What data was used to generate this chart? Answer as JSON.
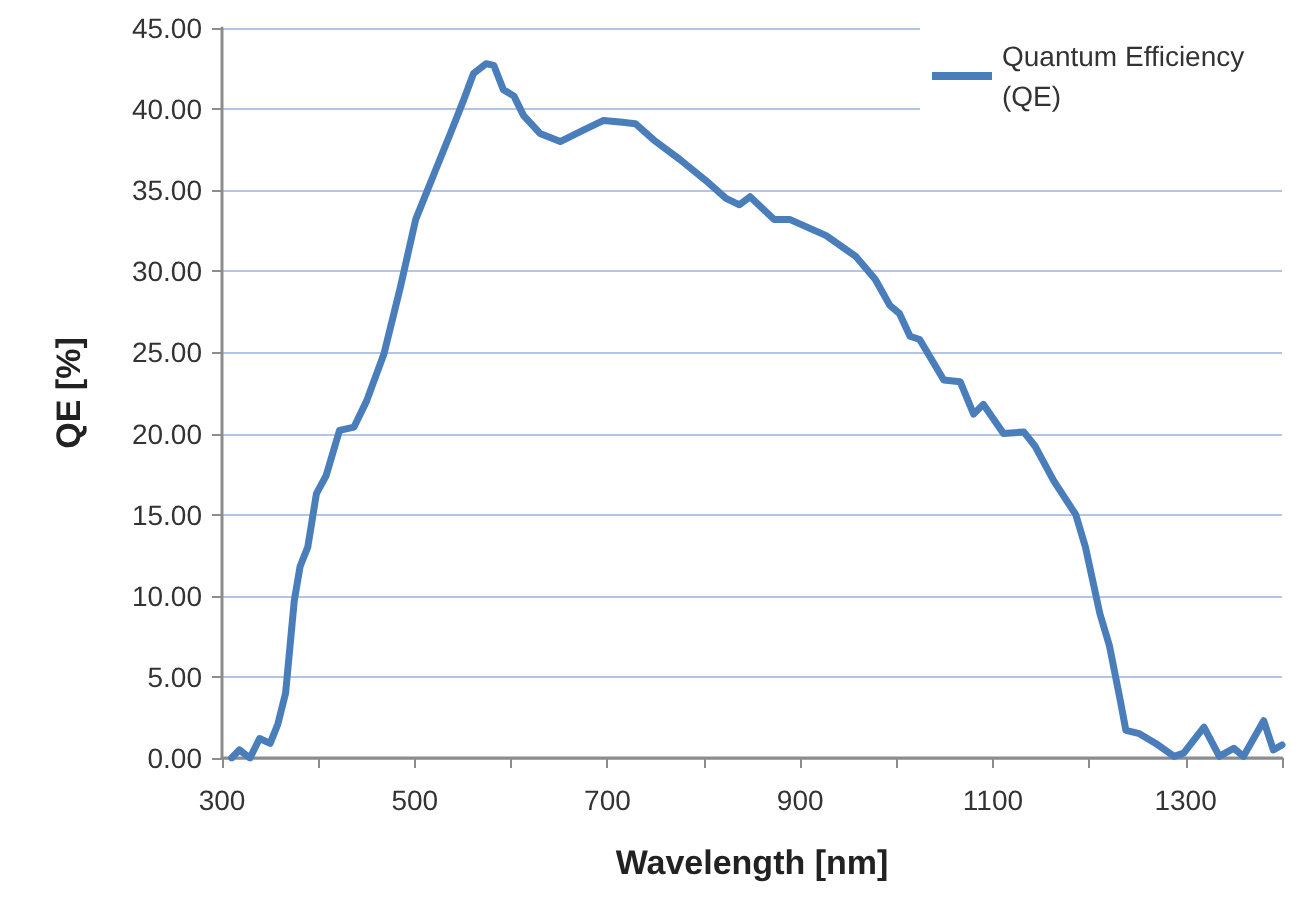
{
  "chart_data": {
    "type": "line",
    "xlabel": "Wavelength [nm]",
    "ylabel": "QE [%]",
    "series": [
      {
        "name": "Quantum Efficiency (QE)",
        "color": "#4a7ebb",
        "x": [
          310,
          318,
          329,
          339,
          350,
          358,
          366,
          375,
          381,
          389,
          398,
          408,
          422,
          437,
          450,
          468,
          485,
          501,
          520,
          537,
          551,
          561,
          574,
          582,
          592,
          603,
          613,
          630,
          651,
          675,
          696,
          713,
          729,
          748,
          775,
          802,
          823,
          837,
          848,
          873,
          889,
          927,
          958,
          978,
          993,
          1003,
          1014,
          1024,
          1049,
          1066,
          1080,
          1090,
          1111,
          1132,
          1144,
          1163,
          1186,
          1196,
          1211,
          1221,
          1232,
          1238,
          1252,
          1269,
          1288,
          1298,
          1319,
          1335,
          1350,
          1360,
          1381,
          1391,
          1400
        ],
        "values": [
          0,
          0.5,
          0,
          1.2,
          0.9,
          2.1,
          4,
          9.7,
          11.8,
          13,
          16.3,
          17.4,
          20.2,
          20.4,
          22,
          24.9,
          29,
          33.2,
          36,
          38.5,
          40.6,
          42.2,
          42.8,
          42.7,
          41.2,
          40.8,
          39.6,
          38.5,
          38,
          38.7,
          39.3,
          39.2,
          39.1,
          38.1,
          36.9,
          35.6,
          34.5,
          34.1,
          34.6,
          33.2,
          33.2,
          32.2,
          30.9,
          29.5,
          27.9,
          27.4,
          26,
          25.8,
          23.3,
          23.2,
          21.2,
          21.8,
          20,
          20.1,
          19.2,
          17.1,
          15,
          13,
          8.9,
          6.9,
          3.6,
          1.7,
          1.5,
          0.9,
          0.1,
          0.3,
          1.9,
          0.1,
          0.6,
          0.1,
          2.3,
          0.5,
          0.8
        ]
      }
    ],
    "xlim": [
      300,
      1400
    ],
    "xticks": [
      300,
      {
        "value": 400,
        "label": null
      },
      500,
      {
        "value": 600,
        "label": null
      },
      700,
      {
        "value": 800,
        "label": null
      },
      900,
      {
        "value": 1000,
        "label": null
      },
      1100,
      {
        "value": 1200,
        "label": null
      },
      1300,
      {
        "value": 1400,
        "label": null
      }
    ],
    "ylim": [
      0,
      45
    ],
    "yticks": [
      {
        "value": 0,
        "label": "0.00"
      },
      {
        "value": 5,
        "label": "5.00"
      },
      {
        "value": 10,
        "label": "10.00"
      },
      {
        "value": 15,
        "label": "15.00"
      },
      {
        "value": 20,
        "label": "20.00"
      },
      {
        "value": 25,
        "label": "25.00"
      },
      {
        "value": 30,
        "label": "30.00"
      },
      {
        "value": 35,
        "label": "35.00"
      },
      {
        "value": 40,
        "label": "40.00"
      },
      {
        "value": 45,
        "label": "45.00"
      }
    ],
    "grid": "y",
    "legend": "top right",
    "marker": "none",
    "line_style": "solid"
  }
}
